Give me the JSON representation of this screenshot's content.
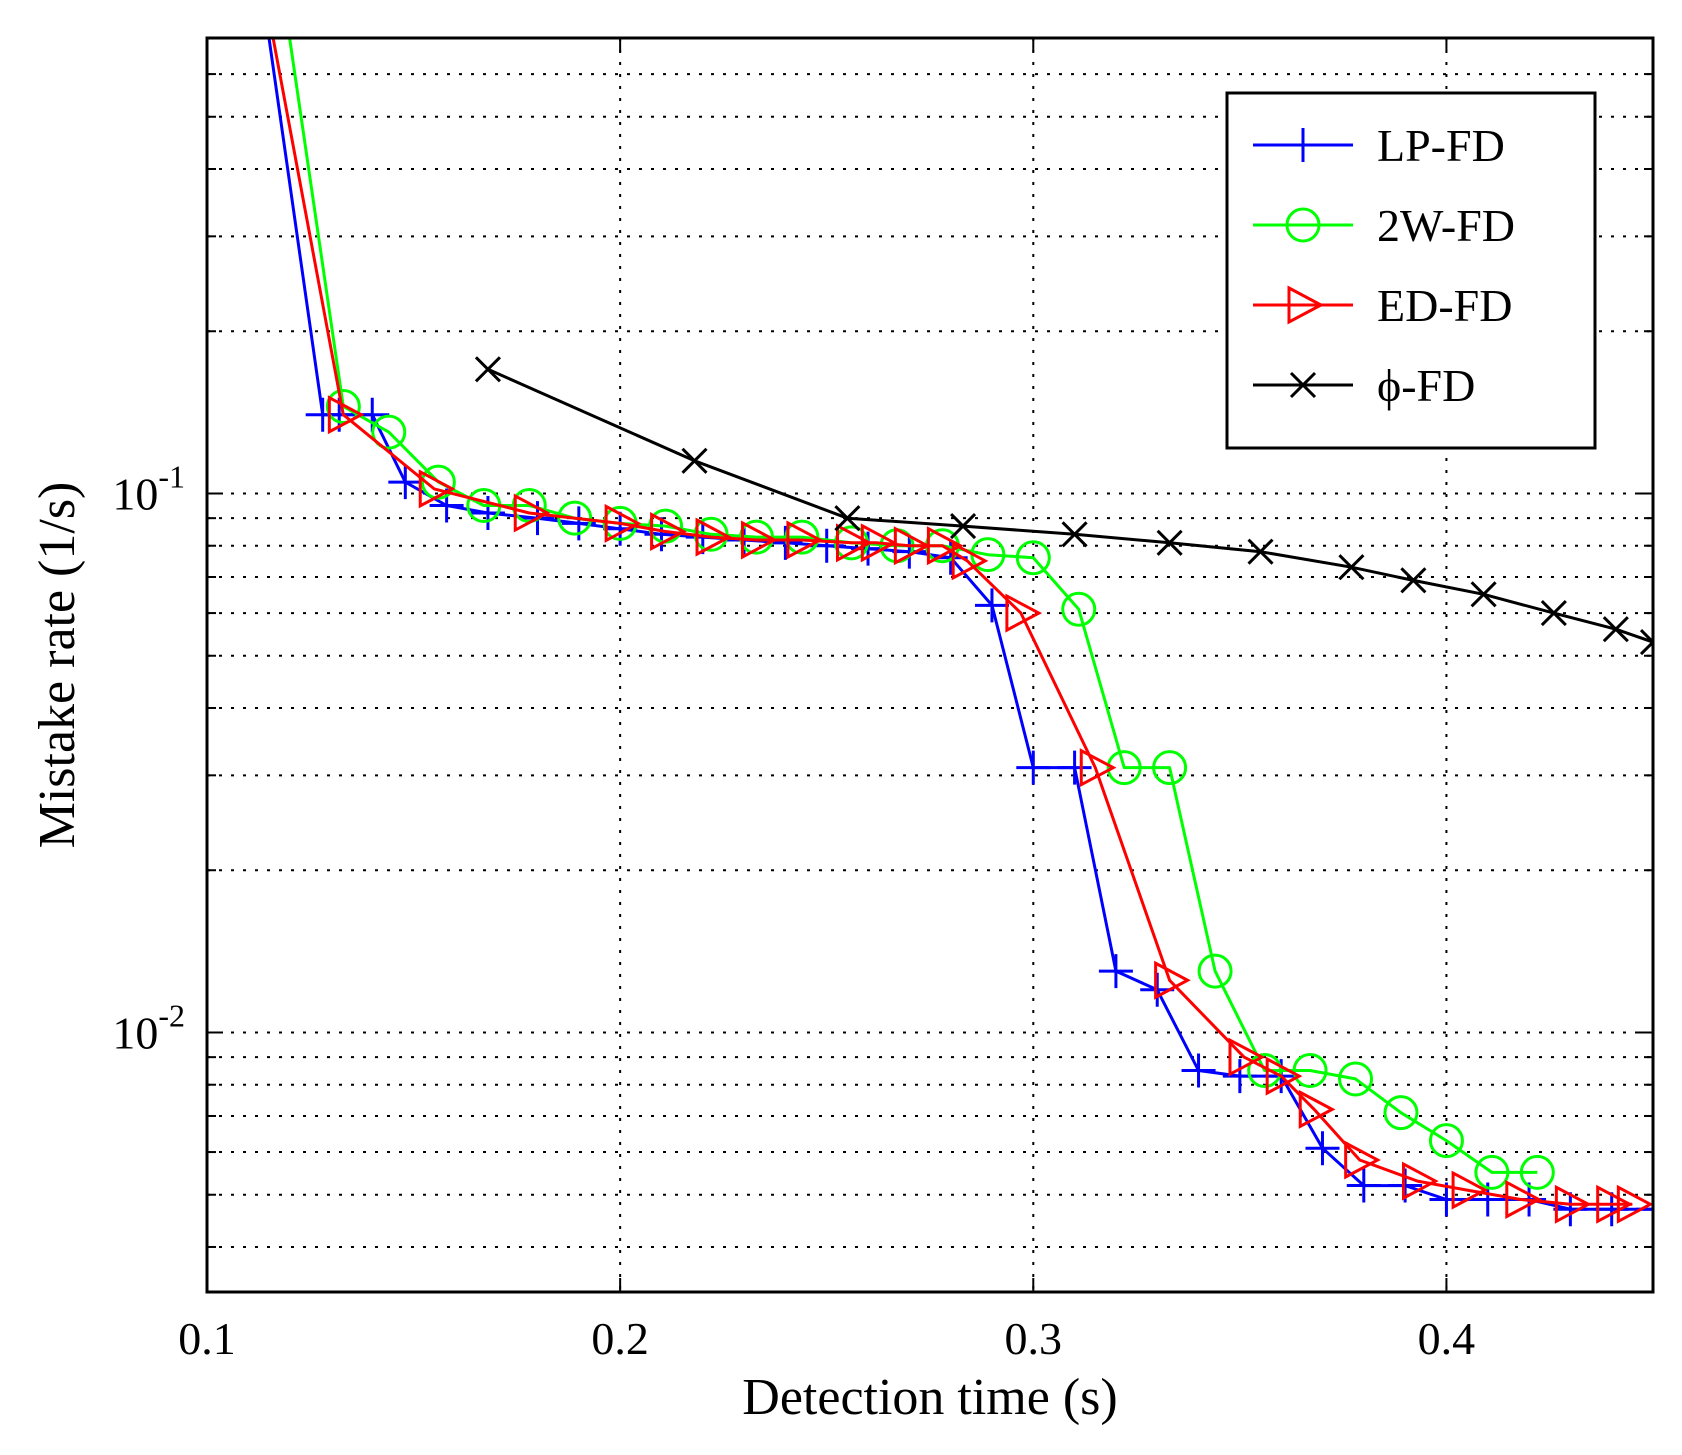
{
  "chart_data": {
    "type": "line",
    "title": "",
    "xlabel": "Detection time (s)",
    "ylabel": "Mistake rate (1/s)",
    "xlim": [
      0.1,
      0.45
    ],
    "ylim": [
      0.0033,
      0.7
    ],
    "yscale": "log",
    "grid": true,
    "legend_position": "top-right",
    "x_ticks": [
      {
        "value": 0.1,
        "label": "0.1"
      },
      {
        "value": 0.2,
        "label": "0.2"
      },
      {
        "value": 0.3,
        "label": "0.3"
      },
      {
        "value": 0.4,
        "label": "0.4"
      }
    ],
    "y_ticks": [
      {
        "value": 0.1,
        "base": "10",
        "exp": "-1"
      },
      {
        "value": 0.01,
        "base": "10",
        "exp": "-2"
      }
    ],
    "series": [
      {
        "name": "LP-FD",
        "color": "#0000ff",
        "marker": "plus",
        "x": [
          0.115,
          0.128,
          0.132,
          0.14,
          0.148,
          0.158,
          0.168,
          0.18,
          0.19,
          0.2,
          0.21,
          0.22,
          0.23,
          0.24,
          0.25,
          0.26,
          0.27,
          0.28,
          0.29,
          0.3,
          0.31,
          0.32,
          0.33,
          0.34,
          0.35,
          0.36,
          0.37,
          0.38,
          0.39,
          0.4,
          0.41,
          0.42,
          0.43,
          0.44,
          0.45
        ],
        "y": [
          0.7,
          0.14,
          0.14,
          0.14,
          0.105,
          0.095,
          0.092,
          0.09,
          0.088,
          0.086,
          0.084,
          0.083,
          0.082,
          0.081,
          0.08,
          0.079,
          0.078,
          0.076,
          0.062,
          0.031,
          0.031,
          0.013,
          0.012,
          0.0085,
          0.0083,
          0.0083,
          0.0061,
          0.0052,
          0.0052,
          0.0049,
          0.0049,
          0.0049,
          0.0047,
          0.0047,
          0.0047
        ]
      },
      {
        "name": "2W-FD",
        "color": "#00ff00",
        "marker": "circle",
        "x": [
          0.12,
          0.133,
          0.144,
          0.156,
          0.167,
          0.178,
          0.189,
          0.2,
          0.211,
          0.222,
          0.233,
          0.244,
          0.256,
          0.267,
          0.278,
          0.289,
          0.3,
          0.311,
          0.322,
          0.333,
          0.344,
          0.356,
          0.367,
          0.378,
          0.389,
          0.4,
          0.411,
          0.422
        ],
        "y": [
          0.7,
          0.145,
          0.13,
          0.105,
          0.095,
          0.095,
          0.09,
          0.088,
          0.087,
          0.084,
          0.083,
          0.083,
          0.081,
          0.08,
          0.08,
          0.077,
          0.076,
          0.061,
          0.031,
          0.031,
          0.013,
          0.0085,
          0.0085,
          0.0082,
          0.0071,
          0.0063,
          0.0055,
          0.0055
        ]
      },
      {
        "name": "ED-FD",
        "color": "#ff0000",
        "marker": "triangle-right",
        "x": [
          0.116,
          0.133,
          0.155,
          0.178,
          0.2,
          0.211,
          0.222,
          0.233,
          0.244,
          0.256,
          0.262,
          0.27,
          0.278,
          0.284,
          0.297,
          0.315,
          0.333,
          0.351,
          0.36,
          0.368,
          0.379,
          0.393,
          0.405,
          0.418,
          0.43,
          0.44,
          0.445
        ],
        "y": [
          0.7,
          0.14,
          0.102,
          0.092,
          0.088,
          0.085,
          0.083,
          0.082,
          0.082,
          0.081,
          0.081,
          0.08,
          0.08,
          0.075,
          0.06,
          0.031,
          0.0125,
          0.009,
          0.0083,
          0.0072,
          0.0058,
          0.0053,
          0.0051,
          0.0049,
          0.0048,
          0.0048,
          0.0048
        ]
      },
      {
        "name": "ϕ-FD",
        "color": "#000000",
        "marker": "x",
        "x": [
          0.168,
          0.218,
          0.255,
          0.283,
          0.31,
          0.333,
          0.355,
          0.377,
          0.392,
          0.409,
          0.426,
          0.441,
          0.45
        ],
        "y": [
          0.17,
          0.115,
          0.09,
          0.087,
          0.084,
          0.081,
          0.078,
          0.073,
          0.069,
          0.065,
          0.06,
          0.056,
          0.053
        ]
      }
    ]
  }
}
